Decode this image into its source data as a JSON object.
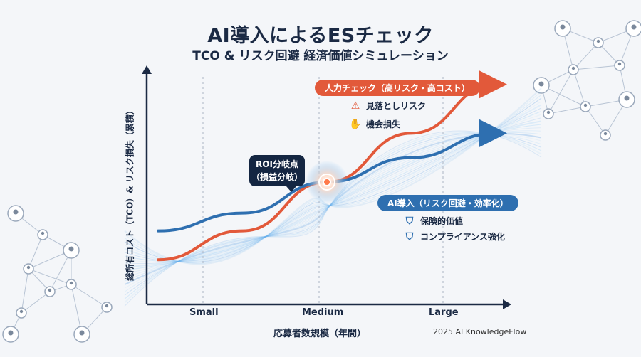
{
  "header": {
    "title": "AI導入によるESチェック",
    "subtitle": "TCO & リスク回避 経済価値シミュレーション"
  },
  "chart_data": {
    "type": "line",
    "categories": [
      "Small",
      "Medium",
      "Large"
    ],
    "xlabel": "応募者数規模（年間）",
    "ylabel": "総所有コスト（TCO）& リスク損失（累積）",
    "series": [
      {
        "name": "人力チェック（高リスク・高コスト）",
        "color": "#e2593a",
        "x": [
          0,
          0.5,
          1,
          1.5,
          2
        ],
        "y": [
          15,
          28,
          50,
          72,
          94
        ]
      },
      {
        "name": "AI導入（リスク回避・効率化）",
        "color": "#2e6fb0",
        "x": [
          0,
          0.5,
          1,
          1.5,
          2
        ],
        "y": [
          28,
          36,
          50,
          61,
          72
        ]
      }
    ],
    "annotations": [
      {
        "label": "ROI分岐点",
        "sublabel": "（損益分岐）",
        "x": 1,
        "y": 50
      }
    ],
    "manual_features": [
      {
        "icon": "warning-icon",
        "text": "見落としリスク"
      },
      {
        "icon": "hand-coin-icon",
        "text": "機会損失"
      }
    ],
    "ai_features": [
      {
        "icon": "shield-check-icon",
        "text": "保険的価値"
      },
      {
        "icon": "shield-check-icon",
        "text": "コンプライアンス強化"
      }
    ],
    "gridlines": "vertical-dashed",
    "legend": "inline-callouts",
    "colors": {
      "manual": "#e2593a",
      "ai": "#2e6fb0",
      "title": "#1b2a44",
      "glow": "#6fb8f5"
    }
  },
  "footer": {
    "credit": "2025 AI KnowledgeFlow"
  }
}
